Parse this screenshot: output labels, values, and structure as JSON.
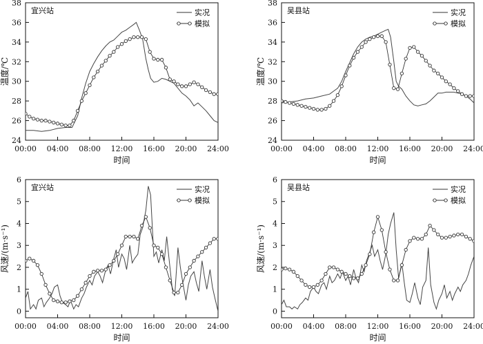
{
  "chart_data": [
    {
      "type": "line",
      "title": "宜兴站",
      "xlabel": "时间",
      "ylabel": "温度/℃",
      "x_tick_labels": [
        "00:00",
        "04:00",
        "08:00",
        "12:00",
        "16:00",
        "20:00",
        "24:00"
      ],
      "y_tick_labels": [
        "24",
        "26",
        "28",
        "30",
        "32",
        "34",
        "36",
        "38"
      ],
      "xlim": [
        0,
        24
      ],
      "ylim": [
        24,
        38
      ],
      "legend_position": "top-right",
      "series": [
        {
          "name": "实况",
          "marker": "none",
          "x": [
            0,
            1,
            2,
            3,
            4,
            5,
            5.8,
            6.5,
            7,
            7.5,
            8,
            8.5,
            9,
            9.5,
            10,
            10.5,
            11,
            11.5,
            12,
            12.5,
            13,
            13.5,
            13.8,
            14.2,
            14.6,
            15,
            15.3,
            15.6,
            16,
            16.5,
            17,
            17.5,
            18,
            18.5,
            19,
            19.5,
            20,
            20.5,
            21,
            21.5,
            22,
            22.5,
            23,
            23.5,
            24
          ],
          "y": [
            25,
            25,
            24.9,
            25,
            25.2,
            25.3,
            25.3,
            26.5,
            28.3,
            29.8,
            31,
            31.8,
            32.5,
            33.1,
            33.6,
            34,
            34.2,
            34.6,
            35,
            35.2,
            35.5,
            35.8,
            36,
            35.2,
            34.3,
            32.3,
            31.2,
            30.3,
            29.9,
            30,
            30.3,
            30.2,
            30,
            29.8,
            29.3,
            28.8,
            28.5,
            28.1,
            27.5,
            27.8,
            27.4,
            27,
            26.5,
            26,
            25.8
          ]
        },
        {
          "name": "模拟",
          "marker": "circle",
          "x": [
            0,
            0.5,
            1,
            1.5,
            2,
            2.5,
            3,
            3.5,
            4,
            4.5,
            5,
            5.5,
            6,
            6.5,
            7,
            7.5,
            8,
            8.5,
            9,
            9.5,
            10,
            10.5,
            11,
            11.5,
            12,
            12.5,
            13,
            13.5,
            14,
            14.5,
            15,
            15.5,
            16,
            16.5,
            17,
            17.5,
            18,
            18.5,
            19,
            19.5,
            20,
            20.5,
            21,
            21.5,
            22,
            22.5,
            23,
            23.5,
            24
          ],
          "y": [
            26.7,
            26.4,
            26.2,
            26.1,
            26,
            26,
            25.9,
            25.8,
            25.7,
            25.6,
            25.5,
            25.5,
            26,
            27,
            28,
            28.8,
            29.6,
            30.4,
            31,
            31.6,
            32.1,
            32.6,
            33,
            33.5,
            33.8,
            34.1,
            34.3,
            34.5,
            34.5,
            34.5,
            34.3,
            33,
            32.3,
            32.2,
            32.2,
            31.4,
            30.2,
            30,
            29.7,
            29.5,
            29.5,
            29.7,
            29.9,
            29.7,
            29.4,
            29.1,
            28.9,
            28.7,
            28.7
          ]
        }
      ]
    },
    {
      "type": "line",
      "title": "吴县站",
      "xlabel": "时间",
      "ylabel": "温度/℃",
      "x_tick_labels": [
        "00:00",
        "04:00",
        "08:00",
        "12:00",
        "16:00",
        "20:00",
        "24:00"
      ],
      "y_tick_labels": [
        "24",
        "26",
        "28",
        "30",
        "32",
        "34",
        "36",
        "38"
      ],
      "xlim": [
        0,
        24
      ],
      "ylim": [
        24,
        38
      ],
      "legend_position": "top-right",
      "series": [
        {
          "name": "实况",
          "marker": "none",
          "x": [
            0,
            1,
            2,
            3,
            4,
            5,
            6,
            6.5,
            7,
            7.5,
            8,
            8.5,
            9,
            9.5,
            10,
            10.5,
            11,
            11.5,
            12,
            12.5,
            13,
            13.3,
            13.6,
            14,
            14.3,
            14.6,
            15,
            15.5,
            16,
            16.5,
            17,
            17.5,
            18,
            18.5,
            19,
            19.5,
            20,
            20.5,
            21,
            21.5,
            22,
            22.5,
            23,
            23.5,
            24
          ],
          "y": [
            27.8,
            27.9,
            28,
            28.2,
            28.3,
            28.5,
            28.7,
            29,
            29.3,
            30,
            31,
            31.9,
            32.8,
            33.5,
            34,
            34.3,
            34.5,
            34.6,
            34.8,
            35,
            35.2,
            35.3,
            34.5,
            32,
            30,
            29.5,
            29.2,
            28.5,
            28,
            27.6,
            27.5,
            27.6,
            27.7,
            28,
            28.4,
            28.8,
            28.8,
            28.9,
            28.9,
            28.9,
            28.8,
            28.7,
            28.5,
            28.2,
            27.8
          ]
        },
        {
          "name": "模拟",
          "marker": "circle",
          "x": [
            0,
            0.5,
            1,
            1.5,
            2,
            2.5,
            3,
            3.5,
            4,
            4.5,
            5,
            5.5,
            6,
            6.5,
            7,
            7.5,
            8,
            8.5,
            9,
            9.5,
            10,
            10.5,
            11,
            11.5,
            12,
            12.5,
            13,
            13.5,
            14,
            14.5,
            15,
            15.5,
            16,
            16.5,
            17,
            17.5,
            18,
            18.5,
            19,
            19.5,
            20,
            20.5,
            21,
            21.5,
            22,
            22.5,
            23,
            23.5,
            24
          ],
          "y": [
            28,
            27.9,
            27.8,
            27.7,
            27.6,
            27.5,
            27.4,
            27.3,
            27.2,
            27.1,
            27.1,
            27.2,
            27.5,
            28,
            28.6,
            29.5,
            30.6,
            31.6,
            32.4,
            33,
            33.5,
            34,
            34.3,
            34.5,
            34.6,
            34.6,
            34,
            31.7,
            29.3,
            29.2,
            30.8,
            32.3,
            33.4,
            33.5,
            33,
            32.6,
            32.1,
            31.6,
            31.1,
            30.8,
            30.4,
            30,
            29.7,
            29.3,
            29,
            28.7,
            28.5,
            28.5,
            28.5
          ]
        }
      ]
    },
    {
      "type": "line",
      "title": "宜兴站",
      "xlabel": "时间",
      "ylabel": "风速/(m·s⁻¹)",
      "x_tick_labels": [
        "00:00",
        "04:00",
        "08:00",
        "12:00",
        "16:00",
        "20:00",
        "24:00"
      ],
      "y_tick_labels": [
        "0",
        "1",
        "2",
        "3",
        "4",
        "5",
        "6"
      ],
      "xlim": [
        0,
        24
      ],
      "ylim": [
        -0.3,
        6
      ],
      "legend_position": "top-right",
      "series": [
        {
          "name": "实况",
          "marker": "none",
          "x": [
            0,
            0.3,
            0.6,
            1,
            1.3,
            1.6,
            2,
            2.3,
            2.6,
            3,
            3.3,
            3.6,
            4,
            4.3,
            4.6,
            5,
            5.3,
            5.6,
            6,
            6.3,
            6.6,
            7,
            7.3,
            7.6,
            8,
            8.3,
            8.6,
            9,
            9.3,
            9.6,
            10,
            10.3,
            10.6,
            11,
            11.3,
            11.6,
            12,
            12.3,
            12.6,
            13,
            13.3,
            13.6,
            14,
            14.3,
            14.6,
            15,
            15.3,
            15.6,
            16,
            16.3,
            16.6,
            17,
            17.3,
            17.6,
            18,
            18.3,
            18.6,
            19,
            19.3,
            19.6,
            20,
            20.3,
            20.6,
            21,
            21.3,
            21.6,
            22,
            22.3,
            22.6,
            23,
            23.3,
            23.6,
            24
          ],
          "y": [
            0.6,
            0.9,
            0.1,
            0.3,
            0.1,
            0.5,
            0.6,
            0.2,
            0.4,
            0.6,
            0.8,
            1.1,
            1.2,
            0.7,
            0.4,
            0.3,
            0.2,
            0.5,
            0.1,
            0.3,
            0.2,
            0.6,
            0.8,
            1.1,
            1.4,
            1.2,
            1.6,
            1.8,
            1.6,
            1.3,
            1.9,
            2.1,
            1.7,
            2.4,
            2.8,
            2.0,
            2.6,
            2.4,
            1.9,
            3.0,
            2.2,
            2.4,
            2.6,
            3.5,
            3.8,
            4.6,
            5.7,
            5.3,
            2.5,
            2.7,
            2.2,
            2.8,
            2.3,
            3.4,
            2.0,
            1.0,
            0.7,
            2.9,
            2.0,
            1.3,
            0.5,
            1.2,
            1.6,
            1.8,
            1.3,
            0.9,
            2.3,
            1.6,
            1.0,
            1.9,
            1.1,
            0.6,
            0.0
          ]
        },
        {
          "name": "模拟",
          "marker": "circle",
          "x": [
            0,
            0.5,
            1,
            1.5,
            2,
            2.5,
            3,
            3.5,
            4,
            4.5,
            5,
            5.5,
            6,
            6.5,
            7,
            7.5,
            8,
            8.5,
            9,
            9.5,
            10,
            10.5,
            11,
            11.5,
            12,
            12.5,
            13,
            13.5,
            14,
            14.5,
            15,
            15.5,
            16,
            16.5,
            17,
            17.5,
            18,
            18.5,
            19,
            19.5,
            20,
            20.5,
            21,
            21.5,
            22,
            22.5,
            23,
            23.5,
            24
          ],
          "y": [
            2.3,
            2.4,
            2.3,
            2.1,
            1.7,
            1.2,
            0.8,
            0.5,
            0.45,
            0.4,
            0.4,
            0.45,
            0.5,
            0.7,
            1.0,
            1.3,
            1.6,
            1.8,
            1.85,
            1.85,
            1.9,
            2.1,
            2.3,
            2.6,
            3.0,
            3.4,
            3.4,
            3.4,
            3.3,
            3.9,
            4.3,
            3.8,
            3.0,
            2.9,
            2.6,
            2.0,
            1.4,
            0.85,
            0.85,
            1.2,
            1.7,
            2.0,
            2.3,
            2.5,
            2.7,
            2.9,
            3.1,
            3.3,
            3.3
          ]
        }
      ]
    },
    {
      "type": "line",
      "title": "吴县站",
      "xlabel": "时间",
      "ylabel": "风速/(m·s⁻¹)",
      "x_tick_labels": [
        "00:00",
        "04:00",
        "08:00",
        "12:00",
        "16:00",
        "20:00",
        "24:00"
      ],
      "y_tick_labels": [
        "0",
        "1",
        "2",
        "3",
        "4",
        "5",
        "6"
      ],
      "xlim": [
        0,
        24
      ],
      "ylim": [
        -0.3,
        6
      ],
      "legend_position": "top-right",
      "series": [
        {
          "name": "实况",
          "marker": "none",
          "x": [
            0,
            0.3,
            0.6,
            1,
            1.3,
            1.6,
            2,
            2.3,
            2.6,
            3,
            3.3,
            3.6,
            4,
            4.3,
            4.6,
            5,
            5.3,
            5.6,
            6,
            6.3,
            6.6,
            7,
            7.3,
            7.6,
            8,
            8.3,
            8.6,
            9,
            9.3,
            9.6,
            10,
            10.3,
            10.6,
            11,
            11.3,
            11.6,
            12,
            12.3,
            12.6,
            13,
            13.3,
            13.6,
            14,
            14.3,
            14.6,
            15,
            15.3,
            15.6,
            16,
            16.3,
            16.6,
            17,
            17.3,
            17.6,
            18,
            18.3,
            18.6,
            19,
            19.3,
            19.6,
            20,
            20.3,
            20.6,
            21,
            21.3,
            21.6,
            22,
            22.3,
            22.6,
            23,
            23.3,
            23.6,
            24
          ],
          "y": [
            0.3,
            0.5,
            0.2,
            0.2,
            0.1,
            0.2,
            0.1,
            0.3,
            0.4,
            0.6,
            0.5,
            0.9,
            1.1,
            0.9,
            0.8,
            1.2,
            1.3,
            1.0,
            1.6,
            1.3,
            1.4,
            1.7,
            1.5,
            1.8,
            1.4,
            1.6,
            1.2,
            1.9,
            1.5,
            1.3,
            2.1,
            1.8,
            2.3,
            2.7,
            3.0,
            2.5,
            2.8,
            2.3,
            1.9,
            2.6,
            3.5,
            4.0,
            4.5,
            2.8,
            1.5,
            2.2,
            1.3,
            0.5,
            0.4,
            0.8,
            1.3,
            0.6,
            0.3,
            1.1,
            1.4,
            2.9,
            1.2,
            0.4,
            0.1,
            0.5,
            0.8,
            1.2,
            0.6,
            0.9,
            0.5,
            0.8,
            1.1,
            0.9,
            1.2,
            1.4,
            1.7,
            2.1,
            2.5
          ]
        },
        {
          "name": "模拟",
          "marker": "circle",
          "x": [
            0,
            0.5,
            1,
            1.5,
            2,
            2.5,
            3,
            3.5,
            4,
            4.5,
            5,
            5.5,
            6,
            6.5,
            7,
            7.5,
            8,
            8.5,
            9,
            9.5,
            10,
            10.5,
            11,
            11.5,
            12,
            12.5,
            13,
            13.5,
            14,
            14.5,
            15,
            15.5,
            16,
            16.5,
            17,
            17.5,
            18,
            18.5,
            19,
            19.5,
            20,
            20.5,
            21,
            21.5,
            22,
            22.5,
            23,
            23.5,
            24
          ],
          "y": [
            1.9,
            1.95,
            1.9,
            1.8,
            1.6,
            1.4,
            1.2,
            1.1,
            1.1,
            1.2,
            1.4,
            1.7,
            2.0,
            2.0,
            1.9,
            1.8,
            1.7,
            1.6,
            1.5,
            1.5,
            1.7,
            2.1,
            2.6,
            3.6,
            4.3,
            3.7,
            2.7,
            1.9,
            1.4,
            1.4,
            2.1,
            2.8,
            3.2,
            3.35,
            3.3,
            3.3,
            3.5,
            3.9,
            3.7,
            3.5,
            3.35,
            3.35,
            3.4,
            3.45,
            3.5,
            3.5,
            3.4,
            3.3,
            3.2
          ]
        }
      ]
    }
  ]
}
